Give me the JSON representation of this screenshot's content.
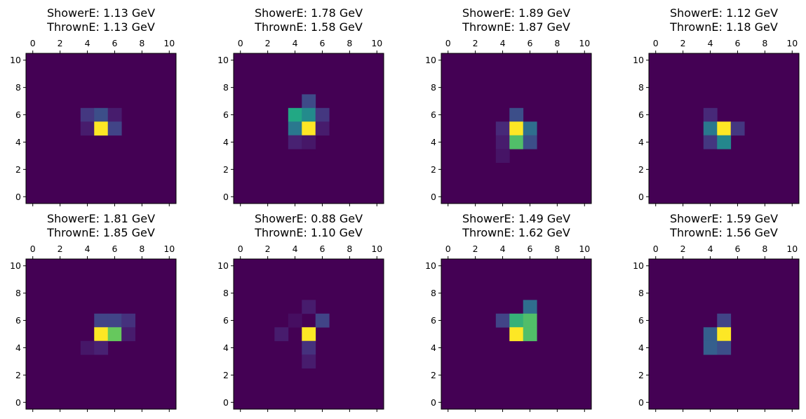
{
  "chart_data": [
    {
      "type": "heatmap",
      "title_line1": "ShowerE: 1.13 GeV",
      "title_line2": "ThrownE: 1.13 GeV",
      "xticks": [
        "0",
        "2",
        "4",
        "6",
        "8",
        "10"
      ],
      "yticks": [
        "0",
        "2",
        "4",
        "6",
        "8",
        "10"
      ],
      "grid_size": 11,
      "colormap": "viridis",
      "cells": [
        [
          4,
          6,
          0.2
        ],
        [
          5,
          6,
          0.3
        ],
        [
          6,
          6,
          0.1
        ],
        [
          4,
          5,
          0.1
        ],
        [
          5,
          5,
          1.0
        ],
        [
          6,
          5,
          0.25
        ]
      ]
    },
    {
      "type": "heatmap",
      "title_line1": "ShowerE: 1.78 GeV",
      "title_line2": "ThrownE: 1.58 GeV",
      "xticks": [
        "0",
        "2",
        "4",
        "6",
        "8",
        "10"
      ],
      "yticks": [
        "0",
        "2",
        "4",
        "6",
        "8",
        "10"
      ],
      "grid_size": 11,
      "colormap": "viridis",
      "cells": [
        [
          5,
          7,
          0.28
        ],
        [
          4,
          6,
          0.75
        ],
        [
          5,
          6,
          0.6
        ],
        [
          6,
          6,
          0.2
        ],
        [
          4,
          5,
          0.5
        ],
        [
          5,
          5,
          1.0
        ],
        [
          6,
          5,
          0.1
        ],
        [
          4,
          4,
          0.12
        ],
        [
          5,
          4,
          0.08
        ]
      ]
    },
    {
      "type": "heatmap",
      "title_line1": "ShowerE: 1.89 GeV",
      "title_line2": "ThrownE: 1.87 GeV",
      "xticks": [
        "0",
        "2",
        "4",
        "6",
        "8",
        "10"
      ],
      "yticks": [
        "0",
        "2",
        "4",
        "6",
        "8",
        "10"
      ],
      "grid_size": 11,
      "colormap": "viridis",
      "cells": [
        [
          5,
          6,
          0.3
        ],
        [
          4,
          5,
          0.15
        ],
        [
          5,
          5,
          1.0
        ],
        [
          6,
          5,
          0.45
        ],
        [
          4,
          4,
          0.1
        ],
        [
          5,
          4,
          0.82
        ],
        [
          6,
          4,
          0.3
        ],
        [
          4,
          3,
          0.07
        ]
      ]
    },
    {
      "type": "heatmap",
      "title_line1": "ShowerE: 1.12 GeV",
      "title_line2": "ThrownE: 1.18 GeV",
      "xticks": [
        "0",
        "2",
        "4",
        "6",
        "8",
        "10"
      ],
      "yticks": [
        "0",
        "2",
        "4",
        "6",
        "8",
        "10"
      ],
      "grid_size": 11,
      "colormap": "viridis",
      "cells": [
        [
          4,
          6,
          0.15
        ],
        [
          4,
          5,
          0.5
        ],
        [
          5,
          5,
          1.0
        ],
        [
          6,
          5,
          0.2
        ],
        [
          4,
          4,
          0.2
        ],
        [
          5,
          4,
          0.58
        ]
      ]
    },
    {
      "type": "heatmap",
      "title_line1": "ShowerE: 1.81 GeV",
      "title_line2": "ThrownE: 1.85 GeV",
      "xticks": [
        "0",
        "2",
        "4",
        "6",
        "8",
        "10"
      ],
      "yticks": [
        "0",
        "2",
        "4",
        "6",
        "8",
        "10"
      ],
      "grid_size": 11,
      "colormap": "viridis",
      "cells": [
        [
          5,
          6,
          0.25
        ],
        [
          6,
          6,
          0.25
        ],
        [
          7,
          6,
          0.18
        ],
        [
          5,
          5,
          1.0
        ],
        [
          6,
          5,
          0.85
        ],
        [
          7,
          5,
          0.1
        ],
        [
          4,
          4,
          0.08
        ],
        [
          5,
          4,
          0.12
        ]
      ]
    },
    {
      "type": "heatmap",
      "title_line1": "ShowerE: 0.88 GeV",
      "title_line2": "ThrownE: 1.10 GeV",
      "xticks": [
        "0",
        "2",
        "4",
        "6",
        "8",
        "10"
      ],
      "yticks": [
        "0",
        "2",
        "4",
        "6",
        "8",
        "10"
      ],
      "grid_size": 11,
      "colormap": "viridis",
      "cells": [
        [
          5,
          7,
          0.1
        ],
        [
          4,
          6,
          0.05
        ],
        [
          6,
          6,
          0.25
        ],
        [
          3,
          5,
          0.1
        ],
        [
          5,
          5,
          1.0
        ],
        [
          5,
          4,
          0.18
        ],
        [
          5,
          3,
          0.1
        ]
      ]
    },
    {
      "type": "heatmap",
      "title_line1": "ShowerE: 1.49 GeV",
      "title_line2": "ThrownE: 1.62 GeV",
      "xticks": [
        "0",
        "2",
        "4",
        "6",
        "8",
        "10"
      ],
      "yticks": [
        "0",
        "2",
        "4",
        "6",
        "8",
        "10"
      ],
      "grid_size": 11,
      "colormap": "viridis",
      "cells": [
        [
          6,
          7,
          0.45
        ],
        [
          4,
          6,
          0.25
        ],
        [
          5,
          6,
          0.78
        ],
        [
          6,
          6,
          0.82
        ],
        [
          5,
          5,
          1.0
        ],
        [
          6,
          5,
          0.82
        ]
      ]
    },
    {
      "type": "heatmap",
      "title_line1": "ShowerE: 1.59 GeV",
      "title_line2": "ThrownE: 1.56 GeV",
      "xticks": [
        "0",
        "2",
        "4",
        "6",
        "8",
        "10"
      ],
      "yticks": [
        "0",
        "2",
        "4",
        "6",
        "8",
        "10"
      ],
      "grid_size": 11,
      "colormap": "viridis",
      "cells": [
        [
          5,
          6,
          0.25
        ],
        [
          4,
          5,
          0.38
        ],
        [
          5,
          5,
          1.0
        ],
        [
          4,
          4,
          0.38
        ],
        [
          5,
          4,
          0.3
        ]
      ]
    }
  ]
}
